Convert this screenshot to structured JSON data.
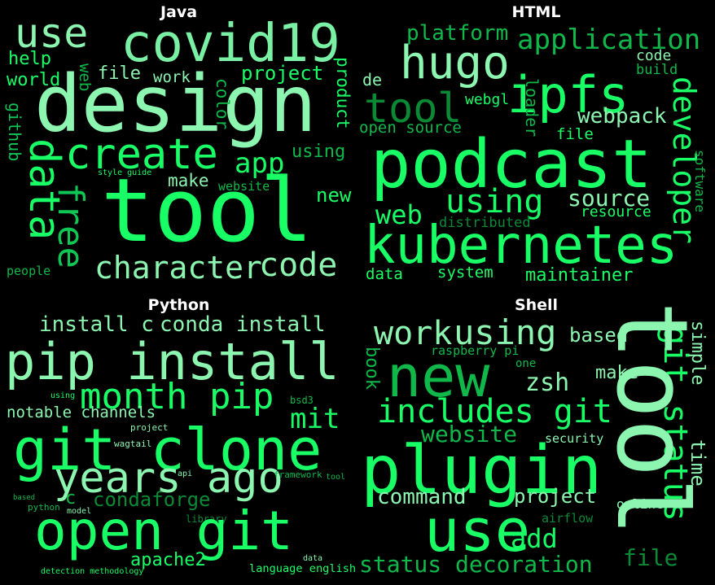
{
  "panels": [
    {
      "title": "Java",
      "words": [
        {
          "text": "use",
          "color": "#8cf5b0",
          "vertical": false
        },
        {
          "text": "covid19",
          "color": "#7af0a4",
          "vertical": false
        },
        {
          "text": "design",
          "color": "#8cf5b0",
          "vertical": false
        },
        {
          "text": "help",
          "color": "#19ff66",
          "vertical": false
        },
        {
          "text": "world",
          "color": "#19ff66",
          "vertical": false
        },
        {
          "text": "web",
          "color": "#10b84a",
          "vertical": true
        },
        {
          "text": "file",
          "color": "#8cf5b0",
          "vertical": false
        },
        {
          "text": "work",
          "color": "#8cf5b0",
          "vertical": false
        },
        {
          "text": "project",
          "color": "#19ff66",
          "vertical": false
        },
        {
          "text": "color",
          "color": "#10b84a",
          "vertical": true
        },
        {
          "text": "product",
          "color": "#19ff66",
          "vertical": true
        },
        {
          "text": "github",
          "color": "#10c654",
          "vertical": true
        },
        {
          "text": "data",
          "color": "#19ff66",
          "vertical": true
        },
        {
          "text": "free",
          "color": "#10c654",
          "vertical": true
        },
        {
          "text": "create",
          "color": "#19ff66",
          "vertical": false
        },
        {
          "text": "app",
          "color": "#19ff66",
          "vertical": false
        },
        {
          "text": "using",
          "color": "#10b84a",
          "vertical": false
        },
        {
          "text": "style guide",
          "color": "#19ff66",
          "vertical": false
        },
        {
          "text": "make",
          "color": "#8cf5b0",
          "vertical": false
        },
        {
          "text": "website",
          "color": "#10b84a",
          "vertical": false
        },
        {
          "text": "tool",
          "color": "#19ff66",
          "vertical": false
        },
        {
          "text": "new",
          "color": "#19ff66",
          "vertical": false
        },
        {
          "text": "people",
          "color": "#10b84a",
          "vertical": false
        },
        {
          "text": "character",
          "color": "#8cf5b0",
          "vertical": false
        },
        {
          "text": "code",
          "color": "#8cf5b0",
          "vertical": false
        }
      ]
    },
    {
      "title": "HTML",
      "words": [
        {
          "text": "platform",
          "color": "#10b84a",
          "vertical": false
        },
        {
          "text": "application",
          "color": "#10b84a",
          "vertical": false
        },
        {
          "text": "hugo",
          "color": "#8cf5b0",
          "vertical": false
        },
        {
          "text": "code",
          "color": "#8cf5b0",
          "vertical": false
        },
        {
          "text": "build",
          "color": "#10b84a",
          "vertical": false
        },
        {
          "text": "de",
          "color": "#8cf5b0",
          "vertical": false
        },
        {
          "text": "tool",
          "color": "#0b8a36",
          "vertical": false
        },
        {
          "text": "ipfs",
          "color": "#19ff66",
          "vertical": false
        },
        {
          "text": "loader",
          "color": "#10b84a",
          "vertical": true
        },
        {
          "text": "webgl",
          "color": "#19ff66",
          "vertical": false
        },
        {
          "text": "webpack",
          "color": "#8cf5b0",
          "vertical": false
        },
        {
          "text": "developer",
          "color": "#19ff66",
          "vertical": true
        },
        {
          "text": "open source",
          "color": "#10b84a",
          "vertical": false
        },
        {
          "text": "file",
          "color": "#19ff66",
          "vertical": false
        },
        {
          "text": "podcast",
          "color": "#19ff66",
          "vertical": false
        },
        {
          "text": "software",
          "color": "#10b84a",
          "vertical": true
        },
        {
          "text": "using",
          "color": "#19ff66",
          "vertical": false
        },
        {
          "text": "source",
          "color": "#8cf5b0",
          "vertical": false
        },
        {
          "text": "web",
          "color": "#19ff66",
          "vertical": false
        },
        {
          "text": "resource",
          "color": "#19ff66",
          "vertical": false
        },
        {
          "text": "distributed",
          "color": "#0b8a36",
          "vertical": false
        },
        {
          "text": "kubernetes",
          "color": "#19ff66",
          "vertical": false
        },
        {
          "text": "data",
          "color": "#19ff66",
          "vertical": false
        },
        {
          "text": "system",
          "color": "#19ff66",
          "vertical": false
        },
        {
          "text": "maintainer",
          "color": "#19ff66",
          "vertical": false
        }
      ]
    },
    {
      "title": "Python",
      "words": [
        {
          "text": "install c",
          "color": "#8cf5b0",
          "vertical": false
        },
        {
          "text": "conda install",
          "color": "#8cf5b0",
          "vertical": false
        },
        {
          "text": "pip install",
          "color": "#8cf5b0",
          "vertical": false
        },
        {
          "text": "month pip",
          "color": "#19ff66",
          "vertical": false
        },
        {
          "text": "notable channels",
          "color": "#8cf5b0",
          "vertical": false
        },
        {
          "text": "mit",
          "color": "#19ff66",
          "vertical": false
        },
        {
          "text": "using",
          "color": "#19ff66",
          "vertical": false
        },
        {
          "text": "bsd3",
          "color": "#10b84a",
          "vertical": false
        },
        {
          "text": "project",
          "color": "#8cf5b0",
          "vertical": false
        },
        {
          "text": "wagtail",
          "color": "#8cf5b0",
          "vertical": false
        },
        {
          "text": "git clone",
          "color": "#19ff66",
          "vertical": false
        },
        {
          "text": "years ago",
          "color": "#8cf5b0",
          "vertical": false
        },
        {
          "text": "c",
          "color": "#10b84a",
          "vertical": false
        },
        {
          "text": "condaforge",
          "color": "#0b8a36",
          "vertical": false
        },
        {
          "text": "api",
          "color": "#8cf5b0",
          "vertical": false
        },
        {
          "text": "framework",
          "color": "#10b84a",
          "vertical": false
        },
        {
          "text": "tool",
          "color": "#10b84a",
          "vertical": false
        },
        {
          "text": "based",
          "color": "#10b84a",
          "vertical": false
        },
        {
          "text": "python",
          "color": "#10b84a",
          "vertical": false
        },
        {
          "text": "model",
          "color": "#8cf5b0",
          "vertical": false
        },
        {
          "text": "library",
          "color": "#0b8a36",
          "vertical": false
        },
        {
          "text": "open git",
          "color": "#19ff66",
          "vertical": false
        },
        {
          "text": "data",
          "color": "#8cf5b0",
          "vertical": false
        },
        {
          "text": "apache2",
          "color": "#19ff66",
          "vertical": false
        },
        {
          "text": "language english",
          "color": "#19ff66",
          "vertical": false
        },
        {
          "text": "detection methodology",
          "color": "#19ff66",
          "vertical": false
        }
      ]
    },
    {
      "title": "Shell",
      "words": [
        {
          "text": "work",
          "color": "#8cf5b0",
          "vertical": false
        },
        {
          "text": "using",
          "color": "#8cf5b0",
          "vertical": false
        },
        {
          "text": "based",
          "color": "#8cf5b0",
          "vertical": false
        },
        {
          "text": "git status",
          "color": "#19ff66",
          "vertical": true
        },
        {
          "text": "simple",
          "color": "#8cf5b0",
          "vertical": true
        },
        {
          "text": "book",
          "color": "#10b84a",
          "vertical": true
        },
        {
          "text": "raspberry pi",
          "color": "#10b84a",
          "vertical": false
        },
        {
          "text": "new",
          "color": "#10b84a",
          "vertical": false
        },
        {
          "text": "one",
          "color": "#10b84a",
          "vertical": false
        },
        {
          "text": "make",
          "color": "#8cf5b0",
          "vertical": false
        },
        {
          "text": "zsh",
          "color": "#8cf5b0",
          "vertical": false
        },
        {
          "text": "includes git",
          "color": "#19ff66",
          "vertical": false
        },
        {
          "text": "website",
          "color": "#10b84a",
          "vertical": false
        },
        {
          "text": "security",
          "color": "#8cf5b0",
          "vertical": false
        },
        {
          "text": "time",
          "color": "#8cf5b0",
          "vertical": true
        },
        {
          "text": "tool",
          "color": "#8cf5b0",
          "vertical": true
        },
        {
          "text": "plugin",
          "color": "#19ff66",
          "vertical": false
        },
        {
          "text": "command",
          "color": "#8cf5b0",
          "vertical": false
        },
        {
          "text": "project",
          "color": "#8cf5b0",
          "vertical": false
        },
        {
          "text": "online",
          "color": "#8cf5b0",
          "vertical": false
        },
        {
          "text": "use",
          "color": "#19ff66",
          "vertical": false
        },
        {
          "text": "airflow",
          "color": "#0b8a36",
          "vertical": false
        },
        {
          "text": "add",
          "color": "#19ff66",
          "vertical": false
        },
        {
          "text": "status decoration",
          "color": "#10b84a",
          "vertical": false
        },
        {
          "text": "file",
          "color": "#0b8a36",
          "vertical": false
        }
      ]
    }
  ]
}
